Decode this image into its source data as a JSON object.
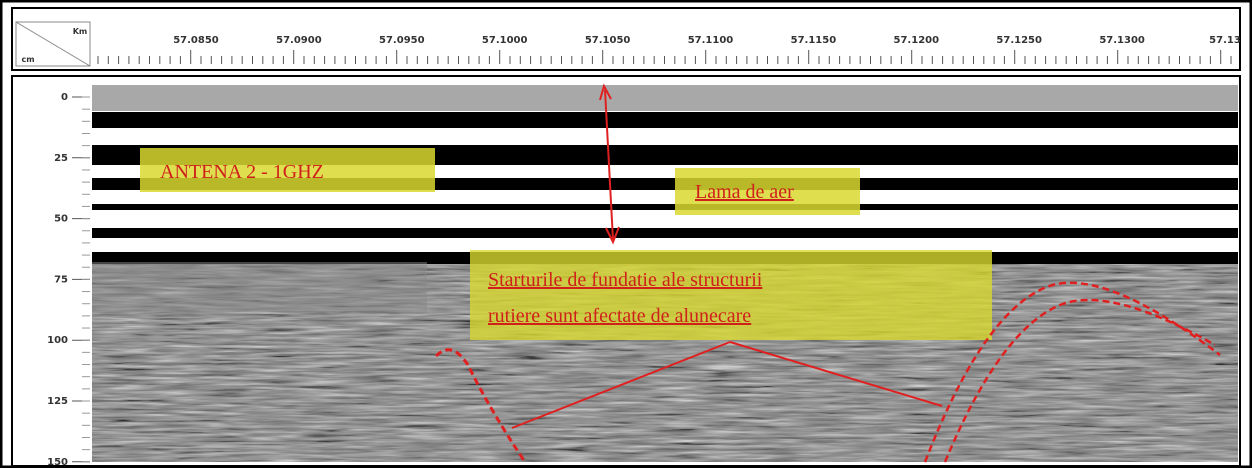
{
  "ruler": {
    "unit_x": "Km",
    "unit_y": "cm",
    "labels": [
      "57.0850",
      "57.0900",
      "57.0950",
      "57.1000",
      "57.1050",
      "57.1100",
      "57.1150",
      "57.1200",
      "57.1250",
      "57.1300",
      "57.13"
    ]
  },
  "depth_axis": {
    "labels": [
      "0",
      "25",
      "50",
      "75",
      "100",
      "125",
      "150"
    ]
  },
  "annotations": [
    {
      "lines": [
        "ANTENA 2 - 1GHZ"
      ]
    },
    {
      "lines": [
        "Lama de aer"
      ]
    },
    {
      "lines": [
        "Starturile de fundatie ale structurii",
        "rutiere sunt afectate de alunecare"
      ]
    }
  ]
}
